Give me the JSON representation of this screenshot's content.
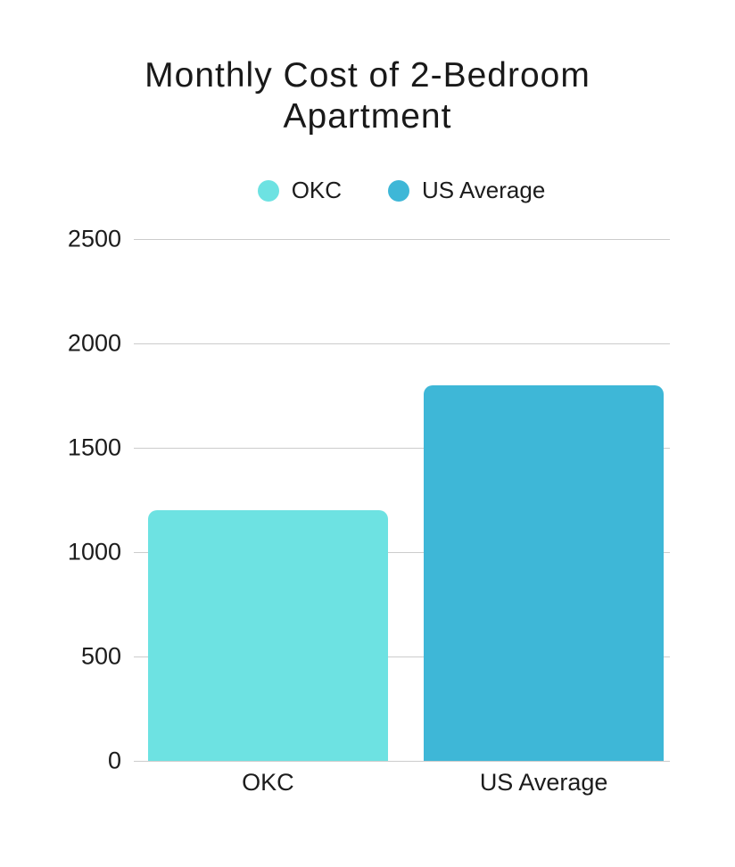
{
  "title": {
    "line1": "Monthly Cost of 2-Bedroom",
    "line2": "Apartment"
  },
  "chart_data": {
    "type": "bar",
    "title": "Monthly Cost of 2-Bedroom Apartment",
    "categories": [
      "OKC",
      "US Average"
    ],
    "values": [
      1200,
      1800
    ],
    "colors": [
      "#6de2e2",
      "#3eb7d7"
    ],
    "ylim": [
      0,
      2500
    ],
    "yticks": [
      2500,
      2000,
      1500,
      1000,
      500,
      0
    ],
    "grid": true,
    "legend_position": "top",
    "xlabel": "",
    "ylabel": ""
  }
}
